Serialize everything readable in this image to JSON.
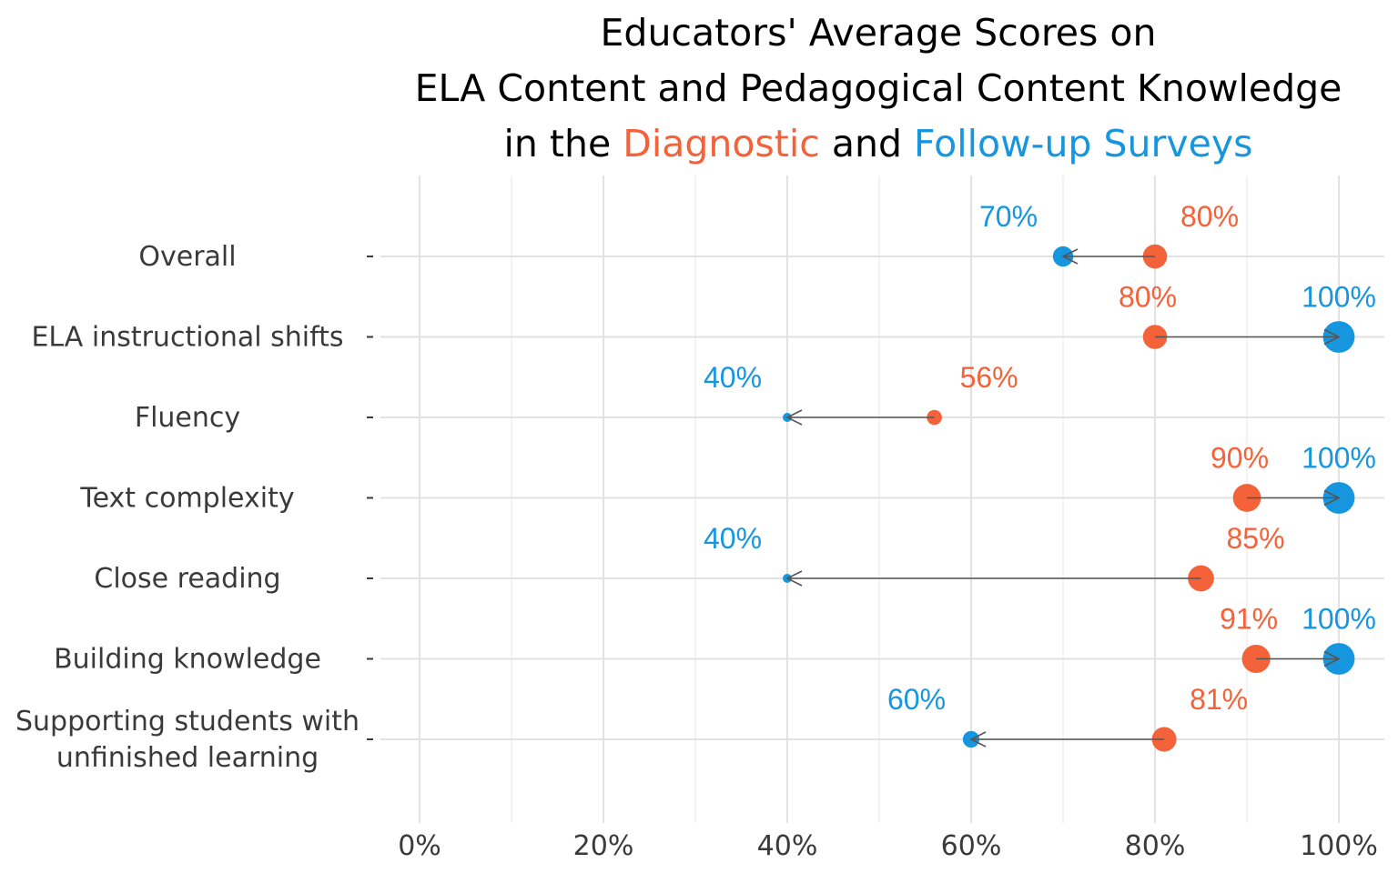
{
  "title": {
    "line1": "Educators' Average Scores on",
    "line2": "ELA Content and Pedagogical Content Knowledge",
    "line3_prefix": "in the",
    "line3_diag": "Diagnostic",
    "line3_mid": "and",
    "line3_foll": "Follow-up Surveys"
  },
  "chart_data": {
    "type": "dumbbell",
    "xlim": [
      0,
      100
    ],
    "x_ticks": [
      0,
      20,
      40,
      60,
      80,
      100
    ],
    "x_tick_labels": [
      "0%",
      "20%",
      "40%",
      "60%",
      "80%",
      "100%"
    ],
    "grid": true,
    "colors": {
      "diagnostic": "#F4623A",
      "follow_up": "#1796E0",
      "arrow": "#555555"
    },
    "categories": [
      {
        "label": [
          "Overall"
        ],
        "diagnostic": 80,
        "follow_up": 70,
        "diag_label": "80%",
        "follow_label": "70%"
      },
      {
        "label": [
          "ELA instructional shifts"
        ],
        "diagnostic": 80,
        "follow_up": 100,
        "diag_label": "80%",
        "follow_label": "100%"
      },
      {
        "label": [
          "Fluency"
        ],
        "diagnostic": 56,
        "follow_up": 40,
        "diag_label": "56%",
        "follow_label": "40%"
      },
      {
        "label": [
          "Text complexity"
        ],
        "diagnostic": 90,
        "follow_up": 100,
        "diag_label": "90%",
        "follow_label": "100%"
      },
      {
        "label": [
          "Close reading"
        ],
        "diagnostic": 85,
        "follow_up": 40,
        "diag_label": "85%",
        "follow_label": "40%"
      },
      {
        "label": [
          "Building knowledge"
        ],
        "diagnostic": 91,
        "follow_up": 100,
        "diag_label": "91%",
        "follow_label": "100%"
      },
      {
        "label": [
          "Supporting students with",
          "unfinished learning"
        ],
        "diagnostic": 81,
        "follow_up": 60,
        "diag_label": "81%",
        "follow_label": "60%"
      }
    ]
  }
}
